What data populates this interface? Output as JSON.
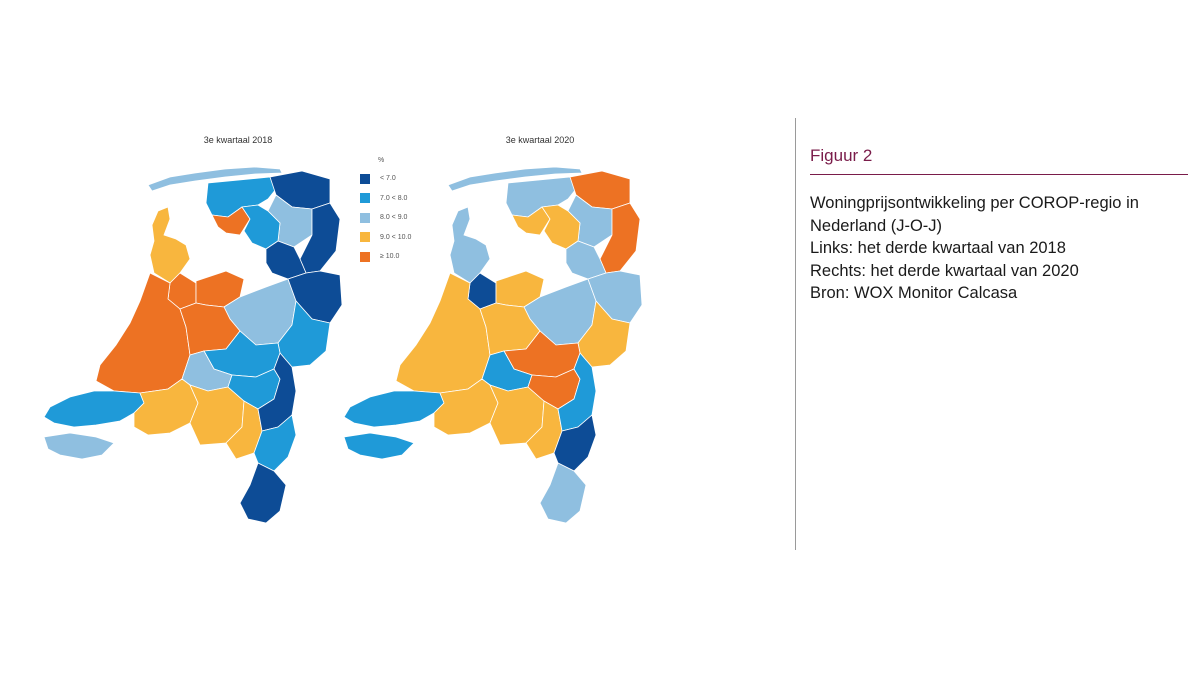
{
  "maps": [
    {
      "title": "3e kwartaal 2018"
    },
    {
      "title": "3e kwartaal 2020"
    }
  ],
  "legend": {
    "unit": "%",
    "items": [
      {
        "label": "< 7.0",
        "color": "#0d4c96"
      },
      {
        "label": "7.0 < 8.0",
        "color": "#1f9ad8"
      },
      {
        "label": "8.0 < 9.0",
        "color": "#8fbfe0"
      },
      {
        "label": "9.0 < 10.0",
        "color": "#f8b63e"
      },
      {
        "label": "≥ 10.0",
        "color": "#ed7223"
      }
    ]
  },
  "figure": {
    "label": "Figuur 2",
    "caption_lines": [
      "Woningprijsontwikkeling per COROP-regio in",
      "Nederland (J-O-J)",
      "Links: het derde kwartaal van 2018",
      "Rechts: het derde kwartaal van 2020",
      "Bron: WOX Monitor Calcasa"
    ]
  },
  "regions": [
    {
      "id": "waddeneilanden",
      "class_2018": 2,
      "class_2020": 2
    },
    {
      "id": "noord-holland-noord",
      "class_2018": 3,
      "class_2020": 2
    },
    {
      "id": "friesland",
      "class_2018": 1,
      "class_2020": 2
    },
    {
      "id": "groningen",
      "class_2018": 0,
      "class_2020": 4
    },
    {
      "id": "drenthe",
      "class_2018": 2,
      "class_2020": 2
    },
    {
      "id": "zuidoost-drenthe",
      "class_2018": 0,
      "class_2020": 4
    },
    {
      "id": "zuidwest-friesland",
      "class_2018": 4,
      "class_2020": 3
    },
    {
      "id": "noordoost-polder",
      "class_2018": 1,
      "class_2020": 3
    },
    {
      "id": "zwolle",
      "class_2018": 0,
      "class_2020": 2
    },
    {
      "id": "amsterdam",
      "class_2018": 4,
      "class_2020": 0
    },
    {
      "id": "flevoland",
      "class_2018": 4,
      "class_2020": 3
    },
    {
      "id": "veluwe",
      "class_2018": 2,
      "class_2020": 2
    },
    {
      "id": "twente",
      "class_2018": 0,
      "class_2020": 2
    },
    {
      "id": "achterhoek",
      "class_2018": 1,
      "class_2020": 3
    },
    {
      "id": "zuid-holland",
      "class_2018": 4,
      "class_2020": 3
    },
    {
      "id": "utrecht",
      "class_2018": 4,
      "class_2020": 3
    },
    {
      "id": "arnhem-nijmegen",
      "class_2018": 1,
      "class_2020": 4
    },
    {
      "id": "rivierenland",
      "class_2018": 2,
      "class_2020": 1
    },
    {
      "id": "zeeland",
      "class_2018": 1,
      "class_2020": 1
    },
    {
      "id": "zeeuws-vlaanderen",
      "class_2018": 2,
      "class_2020": 1
    },
    {
      "id": "west-brabant",
      "class_2018": 3,
      "class_2020": 3
    },
    {
      "id": "midden-brabant",
      "class_2018": 3,
      "class_2020": 3
    },
    {
      "id": "noordoost-brabant",
      "class_2018": 1,
      "class_2020": 4
    },
    {
      "id": "zuidoost-brabant",
      "class_2018": 3,
      "class_2020": 3
    },
    {
      "id": "noord-limburg",
      "class_2018": 0,
      "class_2020": 1
    },
    {
      "id": "midden-limburg",
      "class_2018": 1,
      "class_2020": 0
    },
    {
      "id": "zuid-limburg",
      "class_2018": 0,
      "class_2020": 2
    }
  ]
}
